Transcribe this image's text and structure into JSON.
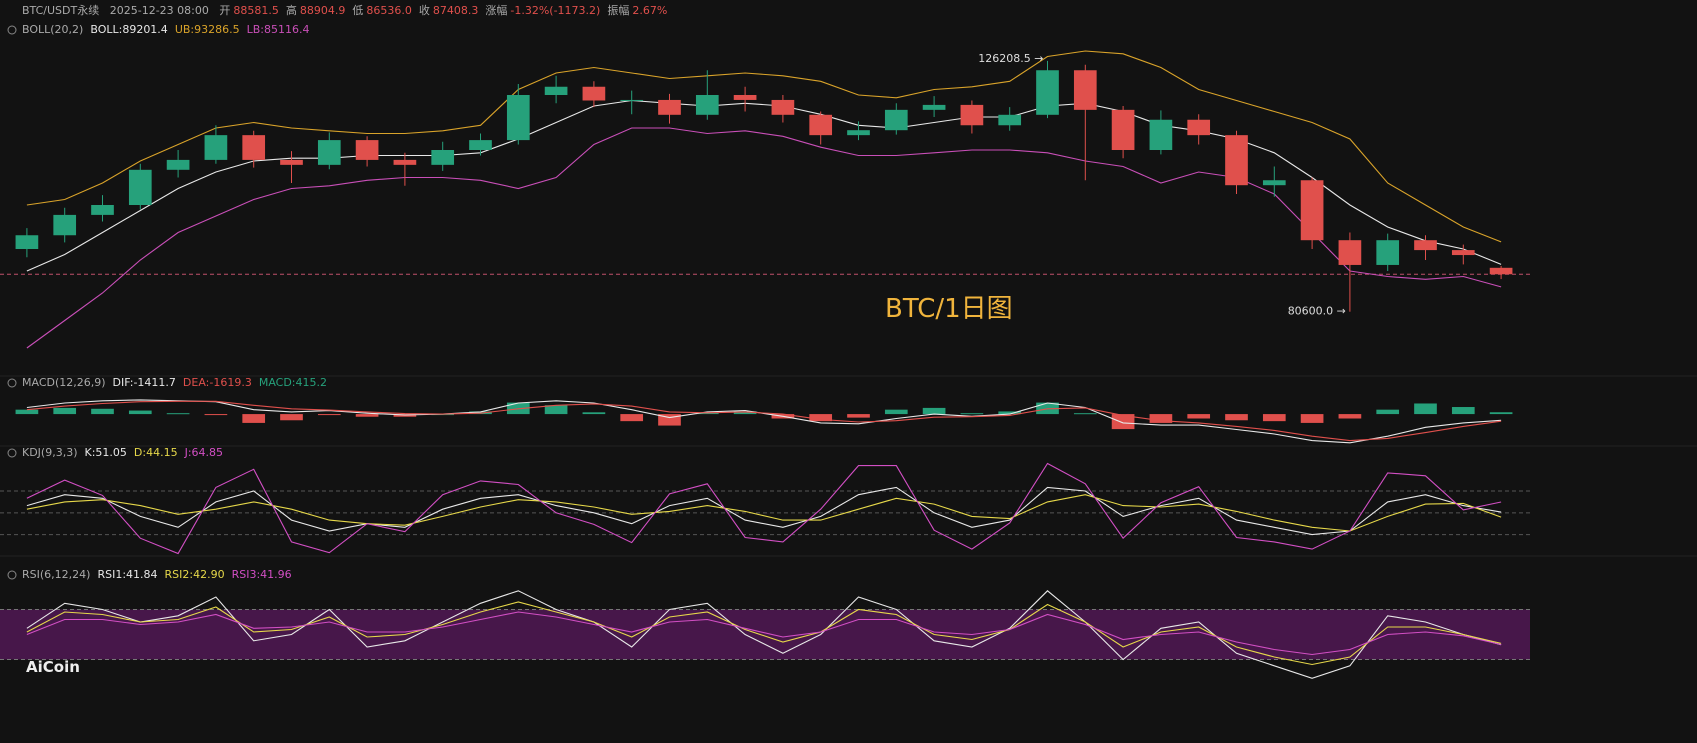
{
  "header": {
    "symbol": "BTC/USDT永续",
    "time": "2025-12-23 08:00",
    "value_color": "#e0504c",
    "fields": [
      {
        "label": "开",
        "value": "88581.5"
      },
      {
        "label": "高",
        "value": "88904.9"
      },
      {
        "label": "低",
        "value": "86536.0"
      },
      {
        "label": "收",
        "value": "87408.3"
      },
      {
        "label": "涨幅",
        "value": "-1.32%(-1173.2)"
      },
      {
        "label": "振幅",
        "value": "2.67%"
      }
    ]
  },
  "watermark": "BTC/1日图",
  "brand": "AiCoin",
  "chart_data": [
    {
      "type": "candlestick",
      "title": "BOLL(20,2)",
      "up_color": "#26a17b",
      "down_color": "#e0504c",
      "price_line_color": "#c0506a",
      "ylim": [
        70000,
        130000
      ],
      "annotations": [
        "126208.5 →",
        "80600.0 →"
      ],
      "open": [
        92000,
        94500,
        98200,
        100000,
        106400,
        108200,
        112700,
        108200,
        107300,
        111800,
        108200,
        107300,
        110000,
        111800,
        120000,
        121500,
        119000,
        119100,
        116400,
        120000,
        119100,
        116400,
        112700,
        113600,
        117300,
        118200,
        114500,
        116400,
        124500,
        117300,
        110000,
        115500,
        112700,
        103600,
        104500,
        93600,
        89100,
        93600,
        91800,
        88581.5
      ],
      "high": [
        95800,
        99500,
        101800,
        107500,
        110000,
        114500,
        113500,
        109800,
        113200,
        112500,
        109500,
        111500,
        113000,
        122000,
        123500,
        122500,
        120800,
        120200,
        124500,
        121500,
        120000,
        117000,
        115200,
        118500,
        119800,
        119000,
        117800,
        126208.5,
        125500,
        118000,
        117200,
        116500,
        113500,
        107000,
        105000,
        95000,
        94800,
        94500,
        92800,
        88904.9
      ],
      "low": [
        90500,
        93200,
        97000,
        99200,
        105000,
        107500,
        106800,
        104000,
        106500,
        107000,
        103500,
        106200,
        109000,
        111000,
        118500,
        117800,
        116500,
        114800,
        115500,
        117000,
        115000,
        111000,
        111800,
        112800,
        116000,
        113000,
        113500,
        115800,
        104500,
        108500,
        109200,
        111000,
        102000,
        101500,
        92000,
        80600.0,
        88000,
        90000,
        89200,
        86536.0
      ],
      "close": [
        94500,
        98200,
        100000,
        106400,
        108200,
        112700,
        108200,
        107300,
        111800,
        108200,
        107300,
        110000,
        111800,
        120000,
        121500,
        119000,
        119100,
        116400,
        120000,
        119100,
        116400,
        112700,
        113600,
        117300,
        118200,
        114500,
        116400,
        124500,
        117300,
        110000,
        115500,
        112700,
        103600,
        104500,
        93600,
        89100,
        93600,
        91800,
        90900,
        87408.3
      ],
      "series": [
        {
          "name": "BOLL:89201.4",
          "color": "#e8e8e8",
          "values": [
            88000,
            91000,
            95000,
            99000,
            103000,
            106000,
            108000,
            108500,
            108500,
            109000,
            109000,
            109000,
            109500,
            112000,
            115000,
            118000,
            119000,
            118500,
            118000,
            118500,
            118000,
            116500,
            114500,
            114000,
            115000,
            116000,
            116000,
            118000,
            118500,
            117000,
            114500,
            113500,
            112000,
            109500,
            105000,
            100000,
            96000,
            93500,
            92000,
            89201.4
          ]
        },
        {
          "name": "UB:93286.5",
          "color": "#d9a32a",
          "values": [
            100000,
            101000,
            104000,
            108000,
            111000,
            114000,
            115000,
            114000,
            113500,
            113000,
            113000,
            113500,
            114500,
            121000,
            124000,
            125000,
            124000,
            123000,
            123500,
            124000,
            123500,
            122500,
            120000,
            119500,
            121000,
            121500,
            122500,
            127000,
            128000,
            127500,
            125000,
            121000,
            119000,
            117000,
            115000,
            112000,
            104000,
            100000,
            96000,
            93286.5
          ]
        },
        {
          "name": "LB:85116.4",
          "color": "#c94fb8",
          "values": [
            74000,
            79000,
            84000,
            90000,
            95000,
            98000,
            101000,
            103000,
            103500,
            104500,
            105000,
            105000,
            104500,
            103000,
            105000,
            111000,
            114000,
            114000,
            113000,
            113500,
            112500,
            110500,
            109000,
            109000,
            109500,
            110000,
            110000,
            109500,
            108000,
            107000,
            104000,
            106000,
            105000,
            102000,
            95000,
            88000,
            87000,
            86500,
            87000,
            85116.4
          ]
        }
      ]
    },
    {
      "type": "macd",
      "title": "MACD(12,26,9)",
      "ylim": [
        -7000,
        5000
      ],
      "series": [
        {
          "name": "DIF:-1411.7",
          "color": "#e8e8e8",
          "values": [
            1500,
            2500,
            3000,
            3200,
            3000,
            2800,
            1000,
            500,
            800,
            200,
            -200,
            0,
            500,
            2500,
            3000,
            2500,
            1000,
            -800,
            500,
            800,
            -500,
            -2000,
            -2200,
            -1000,
            0,
            -500,
            0,
            2500,
            1500,
            -2000,
            -2500,
            -2500,
            -3500,
            -4500,
            -6000,
            -6500,
            -5000,
            -3000,
            -2000,
            -1411.7
          ]
        },
        {
          "name": "DEA:-1619.3",
          "color": "#e0504c",
          "values": [
            1000,
            1800,
            2400,
            2800,
            2900,
            2900,
            2000,
            1200,
            900,
            500,
            100,
            0,
            200,
            1200,
            2000,
            2300,
            1800,
            500,
            300,
            500,
            0,
            -1200,
            -1800,
            -1500,
            -700,
            -600,
            -300,
            1200,
            1400,
            -300,
            -1500,
            -2000,
            -2800,
            -3700,
            -5000,
            -6000,
            -5500,
            -4200,
            -2800,
            -1619.3
          ]
        },
        {
          "name": "MACD:415.2",
          "color": "#26a17b",
          "down_color": "#e0504c",
          "bar": true,
          "values": [
            1000,
            1400,
            1200,
            800,
            200,
            -200,
            -2000,
            -1400,
            -200,
            -600,
            -600,
            0,
            600,
            2600,
            2000,
            400,
            -1600,
            -2600,
            400,
            600,
            -1000,
            -1600,
            -800,
            1000,
            1400,
            200,
            600,
            2600,
            200,
            -3400,
            -2000,
            -1000,
            -1400,
            -1600,
            -2000,
            -1000,
            1000,
            2400,
            1600,
            415.2
          ]
        }
      ]
    },
    {
      "type": "line",
      "title": "KDJ(9,3,3)",
      "ylim": [
        -15,
        120
      ],
      "levels": [
        20,
        50,
        80
      ],
      "series": [
        {
          "name": "K:51.05",
          "color": "#e8e8e8",
          "values": [
            60,
            75,
            70,
            45,
            30,
            65,
            80,
            40,
            25,
            35,
            30,
            55,
            70,
            75,
            60,
            50,
            35,
            60,
            70,
            40,
            30,
            45,
            75,
            85,
            50,
            30,
            40,
            85,
            80,
            45,
            60,
            70,
            40,
            30,
            20,
            25,
            65,
            75,
            60,
            51.05
          ]
        },
        {
          "name": "D:44.15",
          "color": "#e6d84a",
          "values": [
            55,
            65,
            68,
            60,
            48,
            55,
            65,
            55,
            40,
            35,
            33,
            45,
            58,
            68,
            65,
            58,
            48,
            52,
            60,
            52,
            40,
            40,
            55,
            70,
            62,
            45,
            42,
            65,
            75,
            60,
            58,
            62,
            52,
            40,
            30,
            25,
            45,
            62,
            63,
            44.15
          ]
        },
        {
          "name": "J:64.85",
          "color": "#d24fc4",
          "values": [
            70,
            95,
            74,
            15,
            -6,
            85,
            110,
            10,
            -5,
            35,
            24,
            75,
            94,
            89,
            50,
            34,
            9,
            76,
            90,
            16,
            10,
            55,
            115,
            115,
            26,
            0,
            36,
            118,
            90,
            15,
            64,
            86,
            16,
            10,
            0,
            25,
            105,
            101,
            54,
            64.85
          ]
        }
      ]
    },
    {
      "type": "line",
      "title": "RSI(6,12,24)",
      "ylim": [
        0,
        100
      ],
      "band": [
        30,
        70
      ],
      "band_color": "#5a1a5e",
      "series": [
        {
          "name": "RSI1:41.84",
          "color": "#e8e8e8",
          "values": [
            55,
            75,
            70,
            60,
            65,
            80,
            45,
            50,
            70,
            40,
            45,
            60,
            75,
            85,
            70,
            60,
            40,
            70,
            75,
            50,
            35,
            50,
            80,
            70,
            45,
            40,
            55,
            85,
            60,
            30,
            55,
            60,
            35,
            25,
            15,
            25,
            65,
            60,
            50,
            41.84
          ]
        },
        {
          "name": "RSI2:42.90",
          "color": "#e6d84a",
          "values": [
            52,
            68,
            66,
            60,
            62,
            72,
            52,
            54,
            64,
            48,
            50,
            58,
            68,
            76,
            68,
            60,
            48,
            64,
            68,
            54,
            44,
            52,
            70,
            66,
            50,
            46,
            54,
            74,
            60,
            40,
            52,
            56,
            40,
            32,
            26,
            32,
            56,
            56,
            50,
            42.9
          ]
        },
        {
          "name": "RSI3:41.96",
          "color": "#d24fc4",
          "values": [
            50,
            62,
            62,
            58,
            60,
            66,
            55,
            56,
            60,
            52,
            52,
            56,
            62,
            68,
            64,
            58,
            52,
            60,
            62,
            55,
            48,
            52,
            62,
            62,
            52,
            50,
            54,
            66,
            58,
            46,
            50,
            52,
            44,
            38,
            34,
            38,
            50,
            52,
            49,
            41.96
          ]
        }
      ]
    }
  ]
}
